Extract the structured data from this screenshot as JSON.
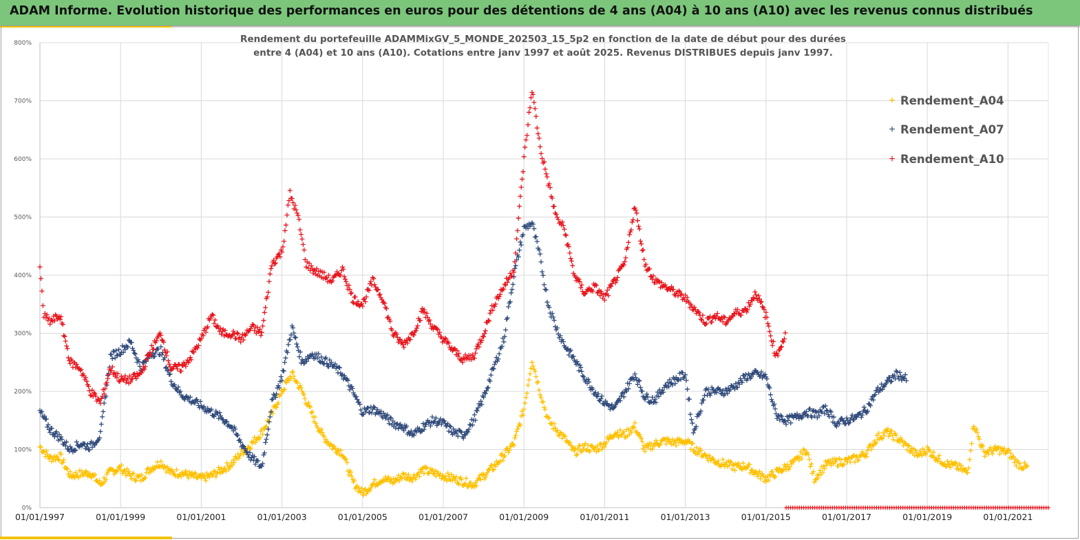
{
  "header": {
    "title": "ADAM Informe. Evolution historique des performances en euros pour des détentions de 4 ans (A04) à 10 ans (A10) avec les revenus connus distribués"
  },
  "colors": {
    "banner": "#7bc67b",
    "A04": "#ffc000",
    "A07": "#2f4a7a",
    "A10": "#e8141c",
    "grid": "#d9d9d9"
  },
  "chart_data": {
    "type": "scatter",
    "title_lines": [
      "Rendement du portefeuille ADAMMixGV_5_MONDE_202503_15_5p2 en fonction de la date de début pour des durées",
      "entre 4 (A04) et 10 ans (A10). Cotations entre janv 1997 et août 2025. Revenus DISTRIBUES depuis janv 1997."
    ],
    "xlabel": "",
    "ylabel": "",
    "marker": "+",
    "x_ticks": [
      "01/01/1997",
      "01/01/1999",
      "01/01/2001",
      "01/01/2003",
      "01/01/2005",
      "01/01/2007",
      "01/01/2009",
      "01/01/2011",
      "01/01/2013",
      "01/01/2015",
      "01/01/2017",
      "01/01/2019",
      "01/01/2021"
    ],
    "y_ticks": [
      "0%",
      "100%",
      "200%",
      "300%",
      "400%",
      "500%",
      "600%",
      "700%",
      "800%"
    ],
    "xlim": [
      1997.0,
      2022.0
    ],
    "ylim": [
      0,
      800
    ],
    "grid": true,
    "legend_position": "top-right",
    "series": [
      {
        "name": "Rendement_A04",
        "color_key": "A04",
        "points": [
          [
            1997.0,
            105
          ],
          [
            1997.25,
            85
          ],
          [
            1997.5,
            88
          ],
          [
            1997.75,
            55
          ],
          [
            1998.0,
            58
          ],
          [
            1998.25,
            60
          ],
          [
            1998.5,
            40
          ],
          [
            1998.75,
            62
          ],
          [
            1999.0,
            68
          ],
          [
            1999.25,
            55
          ],
          [
            1999.5,
            50
          ],
          [
            1999.75,
            68
          ],
          [
            2000.0,
            78
          ],
          [
            2000.25,
            60
          ],
          [
            2000.5,
            60
          ],
          [
            2000.75,
            55
          ],
          [
            2001.0,
            50
          ],
          [
            2001.25,
            55
          ],
          [
            2001.5,
            65
          ],
          [
            2001.75,
            75
          ],
          [
            2002.0,
            95
          ],
          [
            2002.25,
            110
          ],
          [
            2002.5,
            130
          ],
          [
            2002.75,
            160
          ],
          [
            2003.0,
            200
          ],
          [
            2003.25,
            230
          ],
          [
            2003.5,
            200
          ],
          [
            2003.75,
            160
          ],
          [
            2004.0,
            125
          ],
          [
            2004.25,
            105
          ],
          [
            2004.5,
            95
          ],
          [
            2004.75,
            45
          ],
          [
            2005.0,
            25
          ],
          [
            2005.25,
            40
          ],
          [
            2005.5,
            50
          ],
          [
            2005.75,
            45
          ],
          [
            2006.0,
            55
          ],
          [
            2006.25,
            52
          ],
          [
            2006.5,
            65
          ],
          [
            2006.75,
            60
          ],
          [
            2007.0,
            55
          ],
          [
            2007.25,
            50
          ],
          [
            2007.5,
            45
          ],
          [
            2007.75,
            40
          ],
          [
            2008.0,
            55
          ],
          [
            2008.25,
            70
          ],
          [
            2008.5,
            90
          ],
          [
            2008.75,
            110
          ],
          [
            2009.0,
            170
          ],
          [
            2009.2,
            255
          ],
          [
            2009.4,
            200
          ],
          [
            2009.6,
            150
          ],
          [
            2009.8,
            135
          ],
          [
            2010.0,
            120
          ],
          [
            2010.25,
            95
          ],
          [
            2010.5,
            105
          ],
          [
            2010.75,
            100
          ],
          [
            2011.0,
            110
          ],
          [
            2011.25,
            130
          ],
          [
            2011.5,
            125
          ],
          [
            2011.75,
            140
          ],
          [
            2012.0,
            100
          ],
          [
            2012.25,
            110
          ],
          [
            2012.5,
            115
          ],
          [
            2012.75,
            112
          ],
          [
            2013.0,
            115
          ],
          [
            2013.25,
            100
          ],
          [
            2013.5,
            90
          ],
          [
            2013.75,
            80
          ],
          [
            2014.0,
            75
          ],
          [
            2014.25,
            70
          ],
          [
            2014.5,
            72
          ],
          [
            2014.75,
            60
          ],
          [
            2015.0,
            50
          ],
          [
            2015.25,
            60
          ],
          [
            2015.5,
            70
          ],
          [
            2015.75,
            80
          ],
          [
            2016.0,
            100
          ],
          [
            2016.2,
            50
          ],
          [
            2016.5,
            75
          ],
          [
            2016.75,
            78
          ],
          [
            2017.0,
            80
          ],
          [
            2017.25,
            85
          ],
          [
            2017.5,
            95
          ],
          [
            2017.75,
            120
          ],
          [
            2018.0,
            130
          ],
          [
            2018.25,
            120
          ],
          [
            2018.5,
            105
          ],
          [
            2018.75,
            90
          ],
          [
            2019.0,
            100
          ],
          [
            2019.25,
            85
          ],
          [
            2019.5,
            75
          ],
          [
            2019.75,
            70
          ],
          [
            2020.0,
            60
          ],
          [
            2020.15,
            145
          ],
          [
            2020.4,
            95
          ],
          [
            2020.75,
            100
          ],
          [
            2021.0,
            95
          ],
          [
            2021.25,
            75
          ],
          [
            2021.5,
            68
          ]
        ]
      },
      {
        "name": "Rendement_A07",
        "color_key": "A07",
        "points": [
          [
            1997.0,
            165
          ],
          [
            1997.25,
            135
          ],
          [
            1997.5,
            120
          ],
          [
            1997.75,
            100
          ],
          [
            1998.0,
            110
          ],
          [
            1998.25,
            105
          ],
          [
            1998.5,
            125
          ],
          [
            1998.75,
            260
          ],
          [
            1999.0,
            270
          ],
          [
            1999.25,
            285
          ],
          [
            1999.5,
            240
          ],
          [
            1999.75,
            265
          ],
          [
            2000.0,
            270
          ],
          [
            2000.25,
            220
          ],
          [
            2000.5,
            195
          ],
          [
            2000.75,
            185
          ],
          [
            2001.0,
            175
          ],
          [
            2001.25,
            165
          ],
          [
            2001.5,
            155
          ],
          [
            2001.75,
            140
          ],
          [
            2002.0,
            110
          ],
          [
            2002.25,
            85
          ],
          [
            2002.5,
            70
          ],
          [
            2002.75,
            180
          ],
          [
            2003.0,
            225
          ],
          [
            2003.25,
            310
          ],
          [
            2003.5,
            250
          ],
          [
            2003.75,
            265
          ],
          [
            2004.0,
            255
          ],
          [
            2004.25,
            245
          ],
          [
            2004.5,
            230
          ],
          [
            2004.75,
            200
          ],
          [
            2005.0,
            165
          ],
          [
            2005.25,
            170
          ],
          [
            2005.5,
            160
          ],
          [
            2005.75,
            145
          ],
          [
            2006.0,
            140
          ],
          [
            2006.25,
            125
          ],
          [
            2006.5,
            140
          ],
          [
            2006.75,
            150
          ],
          [
            2007.0,
            145
          ],
          [
            2007.25,
            130
          ],
          [
            2007.5,
            125
          ],
          [
            2007.75,
            150
          ],
          [
            2008.0,
            190
          ],
          [
            2008.25,
            240
          ],
          [
            2008.5,
            290
          ],
          [
            2008.75,
            400
          ],
          [
            2009.0,
            480
          ],
          [
            2009.2,
            490
          ],
          [
            2009.4,
            430
          ],
          [
            2009.6,
            350
          ],
          [
            2009.8,
            310
          ],
          [
            2010.0,
            280
          ],
          [
            2010.25,
            255
          ],
          [
            2010.5,
            225
          ],
          [
            2010.75,
            200
          ],
          [
            2011.0,
            180
          ],
          [
            2011.25,
            170
          ],
          [
            2011.5,
            200
          ],
          [
            2011.75,
            230
          ],
          [
            2012.0,
            190
          ],
          [
            2012.25,
            185
          ],
          [
            2012.5,
            210
          ],
          [
            2012.75,
            220
          ],
          [
            2013.0,
            230
          ],
          [
            2013.2,
            130
          ],
          [
            2013.5,
            200
          ],
          [
            2013.75,
            200
          ],
          [
            2014.0,
            200
          ],
          [
            2014.25,
            210
          ],
          [
            2014.5,
            225
          ],
          [
            2014.75,
            230
          ],
          [
            2015.0,
            225
          ],
          [
            2015.25,
            160
          ],
          [
            2015.5,
            150
          ],
          [
            2015.75,
            155
          ],
          [
            2016.0,
            165
          ],
          [
            2016.25,
            160
          ],
          [
            2016.5,
            170
          ],
          [
            2016.75,
            145
          ],
          [
            2017.0,
            150
          ],
          [
            2017.25,
            155
          ],
          [
            2017.5,
            170
          ],
          [
            2017.75,
            200
          ],
          [
            2018.0,
            215
          ],
          [
            2018.25,
            230
          ],
          [
            2018.5,
            220
          ]
        ]
      },
      {
        "name": "Rendement_A10",
        "color_key": "A10",
        "points": [
          [
            1997.0,
            410
          ],
          [
            1997.1,
            330
          ],
          [
            1997.25,
            320
          ],
          [
            1997.5,
            330
          ],
          [
            1997.75,
            250
          ],
          [
            1998.0,
            240
          ],
          [
            1998.25,
            200
          ],
          [
            1998.5,
            180
          ],
          [
            1998.75,
            240
          ],
          [
            1999.0,
            220
          ],
          [
            1999.25,
            220
          ],
          [
            1999.5,
            230
          ],
          [
            1999.75,
            270
          ],
          [
            2000.0,
            300
          ],
          [
            2000.25,
            240
          ],
          [
            2000.5,
            240
          ],
          [
            2000.75,
            260
          ],
          [
            2001.0,
            290
          ],
          [
            2001.25,
            330
          ],
          [
            2001.5,
            300
          ],
          [
            2001.75,
            300
          ],
          [
            2002.0,
            290
          ],
          [
            2002.25,
            310
          ],
          [
            2002.5,
            300
          ],
          [
            2002.75,
            420
          ],
          [
            2003.0,
            440
          ],
          [
            2003.2,
            540
          ],
          [
            2003.4,
            500
          ],
          [
            2003.6,
            420
          ],
          [
            2003.75,
            410
          ],
          [
            2004.0,
            400
          ],
          [
            2004.25,
            390
          ],
          [
            2004.5,
            410
          ],
          [
            2004.75,
            360
          ],
          [
            2005.0,
            350
          ],
          [
            2005.25,
            390
          ],
          [
            2005.5,
            360
          ],
          [
            2005.75,
            300
          ],
          [
            2006.0,
            280
          ],
          [
            2006.25,
            300
          ],
          [
            2006.5,
            340
          ],
          [
            2006.75,
            310
          ],
          [
            2007.0,
            290
          ],
          [
            2007.25,
            270
          ],
          [
            2007.5,
            255
          ],
          [
            2007.75,
            260
          ],
          [
            2008.0,
            300
          ],
          [
            2008.25,
            350
          ],
          [
            2008.5,
            380
          ],
          [
            2008.75,
            410
          ],
          [
            2009.0,
            600
          ],
          [
            2009.2,
            720
          ],
          [
            2009.4,
            620
          ],
          [
            2009.6,
            560
          ],
          [
            2009.8,
            500
          ],
          [
            2010.0,
            480
          ],
          [
            2010.25,
            400
          ],
          [
            2010.5,
            370
          ],
          [
            2010.75,
            380
          ],
          [
            2011.0,
            360
          ],
          [
            2011.25,
            390
          ],
          [
            2011.5,
            420
          ],
          [
            2011.75,
            520
          ],
          [
            2012.0,
            420
          ],
          [
            2012.25,
            390
          ],
          [
            2012.5,
            380
          ],
          [
            2012.75,
            370
          ],
          [
            2013.0,
            360
          ],
          [
            2013.25,
            340
          ],
          [
            2013.5,
            320
          ],
          [
            2013.75,
            330
          ],
          [
            2014.0,
            320
          ],
          [
            2014.25,
            335
          ],
          [
            2014.5,
            340
          ],
          [
            2014.75,
            370
          ],
          [
            2015.0,
            330
          ],
          [
            2015.25,
            260
          ],
          [
            2015.5,
            300
          ]
        ]
      }
    ],
    "bottom_band": {
      "color_key": "A10",
      "x_from": 2015.5,
      "x_to": 2022.0,
      "y": 0
    }
  }
}
